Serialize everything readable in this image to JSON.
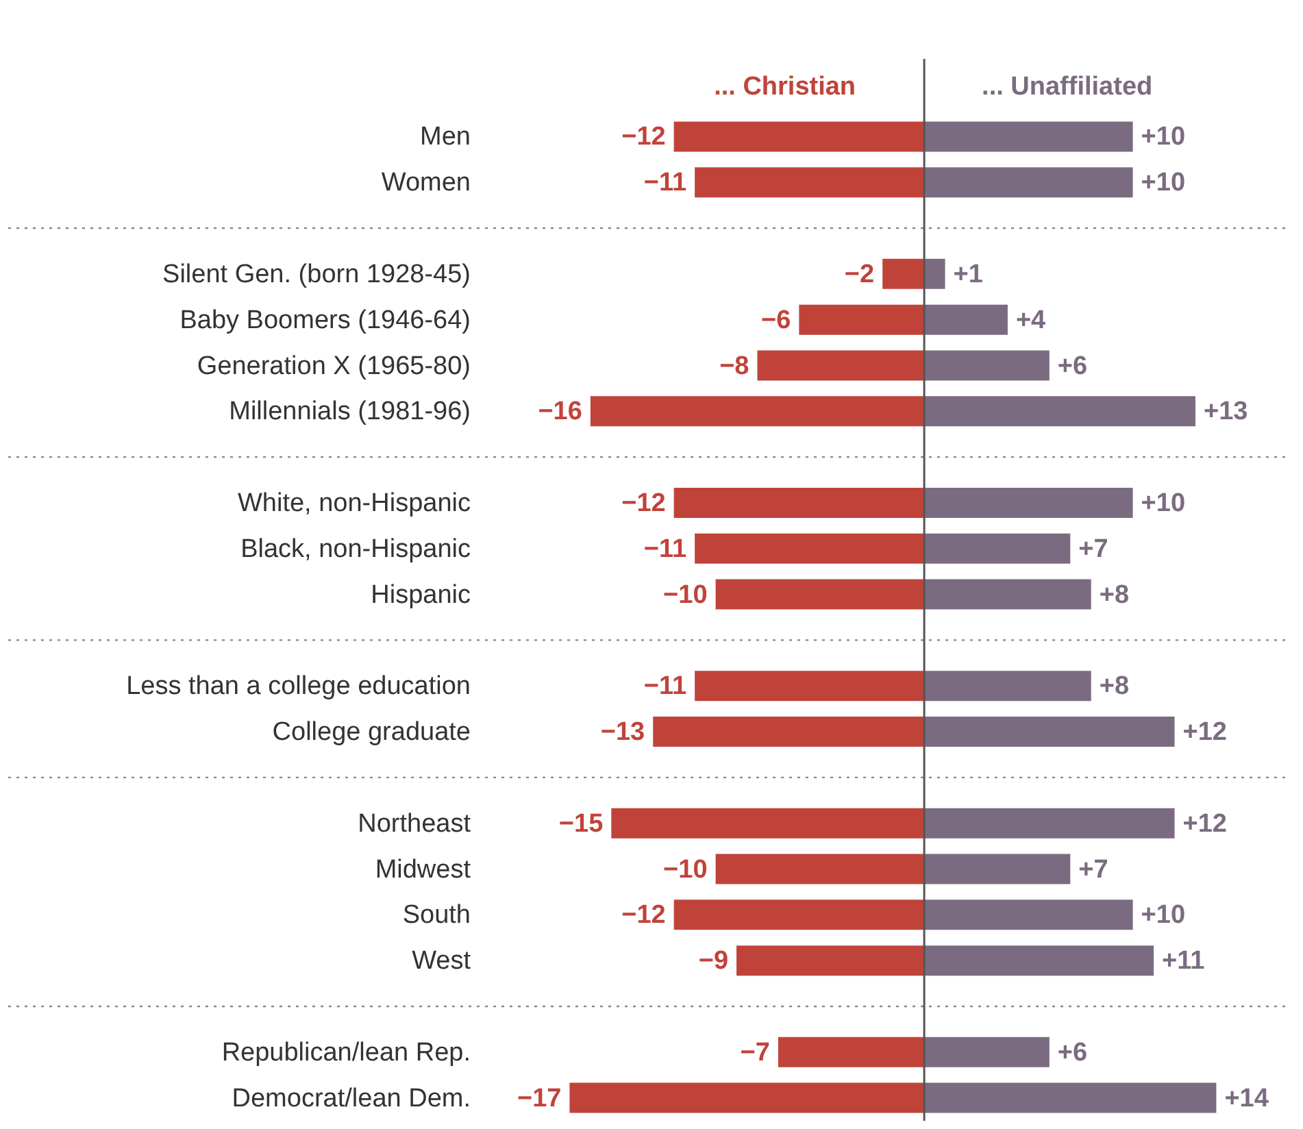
{
  "chart_data": {
    "type": "bar",
    "orientation": "horizontal",
    "stacked": true,
    "legend": false,
    "categories": [
      "Men",
      "Women",
      null,
      "Silent Gen. (born 1928-45)",
      "Baby Boomers (1946-64)",
      "Generation X (1965-80)",
      "Millennials (1981-96)",
      null,
      "White, non-Hispanic",
      "Black, non-Hispanic",
      "Hispanic",
      null,
      "Less than a college education",
      "College graduate",
      null,
      "Northeast",
      "Midwest",
      "South",
      "West",
      null,
      "Republican/lean Rep.",
      "Democrat/lean Dem."
    ],
    "series": [
      {
        "name": "... Christian",
        "color": "#c0433a",
        "values": [
          -12,
          -11,
          null,
          -2,
          -6,
          -8,
          -16,
          null,
          -12,
          -11,
          -10,
          null,
          -11,
          -13,
          null,
          -15,
          -10,
          -12,
          -9,
          null,
          -7,
          -17
        ],
        "value_labels": [
          "−12",
          "−11",
          null,
          "−2",
          "−6",
          "−8",
          "−16",
          null,
          "−12",
          "−11",
          "−10",
          null,
          "−11",
          "−13",
          null,
          "−15",
          "−10",
          "−12",
          "−9",
          null,
          "−7",
          "−17"
        ]
      },
      {
        "name": "... Unaffiliated",
        "color": "#7b6b80",
        "values": [
          10,
          10,
          null,
          1,
          4,
          6,
          13,
          null,
          10,
          7,
          8,
          null,
          8,
          12,
          null,
          12,
          7,
          10,
          11,
          null,
          6,
          14
        ],
        "value_labels": [
          "+10",
          "+10",
          null,
          "+1",
          "+4",
          "+6",
          "+13",
          null,
          "+10",
          "+7",
          "+8",
          null,
          "+8",
          "+12",
          null,
          "+12",
          "+7",
          "+10",
          "+11",
          null,
          "+6",
          "+14"
        ]
      }
    ],
    "ref_lines": [
      {
        "axis": "x",
        "value": 0,
        "color": "#555555"
      }
    ]
  }
}
